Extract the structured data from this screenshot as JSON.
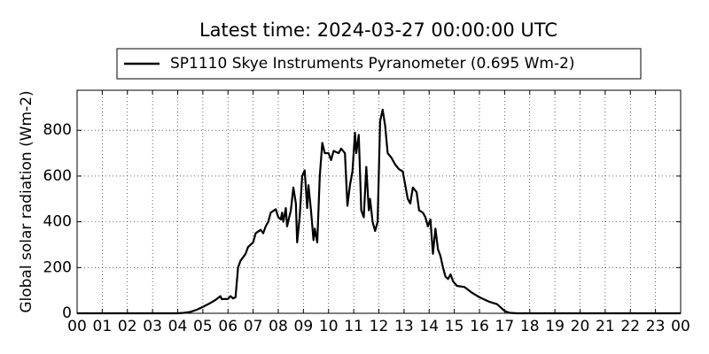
{
  "chart_data": {
    "type": "line",
    "title": "Latest time: 2024-03-27 00:00:00 UTC",
    "y_label": "Global solar radiation (Wm-2)",
    "x": [
      0,
      4,
      4.25,
      4.5,
      4.75,
      5,
      5.25,
      5.5,
      5.7,
      5.75,
      6,
      6.1,
      6.2,
      6.3,
      6.4,
      6.5,
      6.7,
      6.8,
      7,
      7.1,
      7.3,
      7.4,
      7.5,
      7.6,
      7.7,
      7.9,
      8,
      8.1,
      8.15,
      8.2,
      8.3,
      8.35,
      8.5,
      8.6,
      8.7,
      8.75,
      8.85,
      8.95,
      9.05,
      9.15,
      9.2,
      9.3,
      9.4,
      9.45,
      9.55,
      9.65,
      9.75,
      9.85,
      10,
      10.1,
      10.2,
      10.4,
      10.5,
      10.65,
      10.75,
      10.85,
      10.95,
      11.05,
      11.1,
      11.2,
      11.3,
      11.4,
      11.5,
      11.6,
      11.65,
      11.75,
      11.85,
      11.95,
      12.05,
      12.15,
      12.25,
      12.35,
      12.5,
      12.65,
      12.8,
      12.95,
      13.05,
      13.15,
      13.25,
      13.35,
      13.5,
      13.6,
      13.75,
      13.85,
      13.95,
      14.05,
      14.15,
      14.25,
      14.35,
      14.45,
      14.55,
      14.65,
      14.75,
      14.85,
      14.95,
      15.1,
      15.4,
      15.7,
      16,
      16.2,
      16.4,
      16.7,
      17,
      17.2,
      17.5,
      24
    ],
    "series": [
      {
        "name": "SP1110 Skye Instruments Pyranometer (0.695 Wm-2)",
        "color": "#000000",
        "values": [
          0,
          0,
          2,
          6,
          15,
          28,
          42,
          58,
          75,
          62,
          63,
          75,
          65,
          70,
          200,
          230,
          260,
          290,
          310,
          350,
          365,
          350,
          380,
          400,
          440,
          455,
          420,
          410,
          440,
          400,
          460,
          380,
          450,
          550,
          480,
          310,
          420,
          600,
          625,
          460,
          560,
          450,
          320,
          370,
          310,
          600,
          745,
          700,
          700,
          670,
          710,
          700,
          720,
          700,
          470,
          560,
          620,
          790,
          700,
          780,
          450,
          420,
          640,
          450,
          500,
          400,
          360,
          400,
          840,
          890,
          820,
          700,
          680,
          650,
          630,
          620,
          560,
          500,
          480,
          550,
          530,
          450,
          440,
          420,
          380,
          410,
          260,
          370,
          280,
          250,
          200,
          160,
          150,
          170,
          140,
          120,
          115,
          90,
          70,
          60,
          50,
          40,
          10,
          2,
          0,
          0
        ]
      }
    ],
    "xlim": [
      0,
      24
    ],
    "xticks": [
      {
        "value": 0,
        "label": "00"
      },
      {
        "value": 1,
        "label": "01"
      },
      {
        "value": 2,
        "label": "02"
      },
      {
        "value": 3,
        "label": "03"
      },
      {
        "value": 4,
        "label": "04"
      },
      {
        "value": 5,
        "label": "05"
      },
      {
        "value": 6,
        "label": "06"
      },
      {
        "value": 7,
        "label": "07"
      },
      {
        "value": 8,
        "label": "08"
      },
      {
        "value": 9,
        "label": "09"
      },
      10,
      11,
      12,
      13,
      14,
      15,
      16,
      17,
      18,
      19,
      20,
      21,
      22,
      23,
      {
        "value": 24,
        "label": "00"
      }
    ],
    "ylim": [
      0,
      975
    ],
    "yticks": [
      0,
      200,
      400,
      600,
      800
    ],
    "grid": true
  }
}
